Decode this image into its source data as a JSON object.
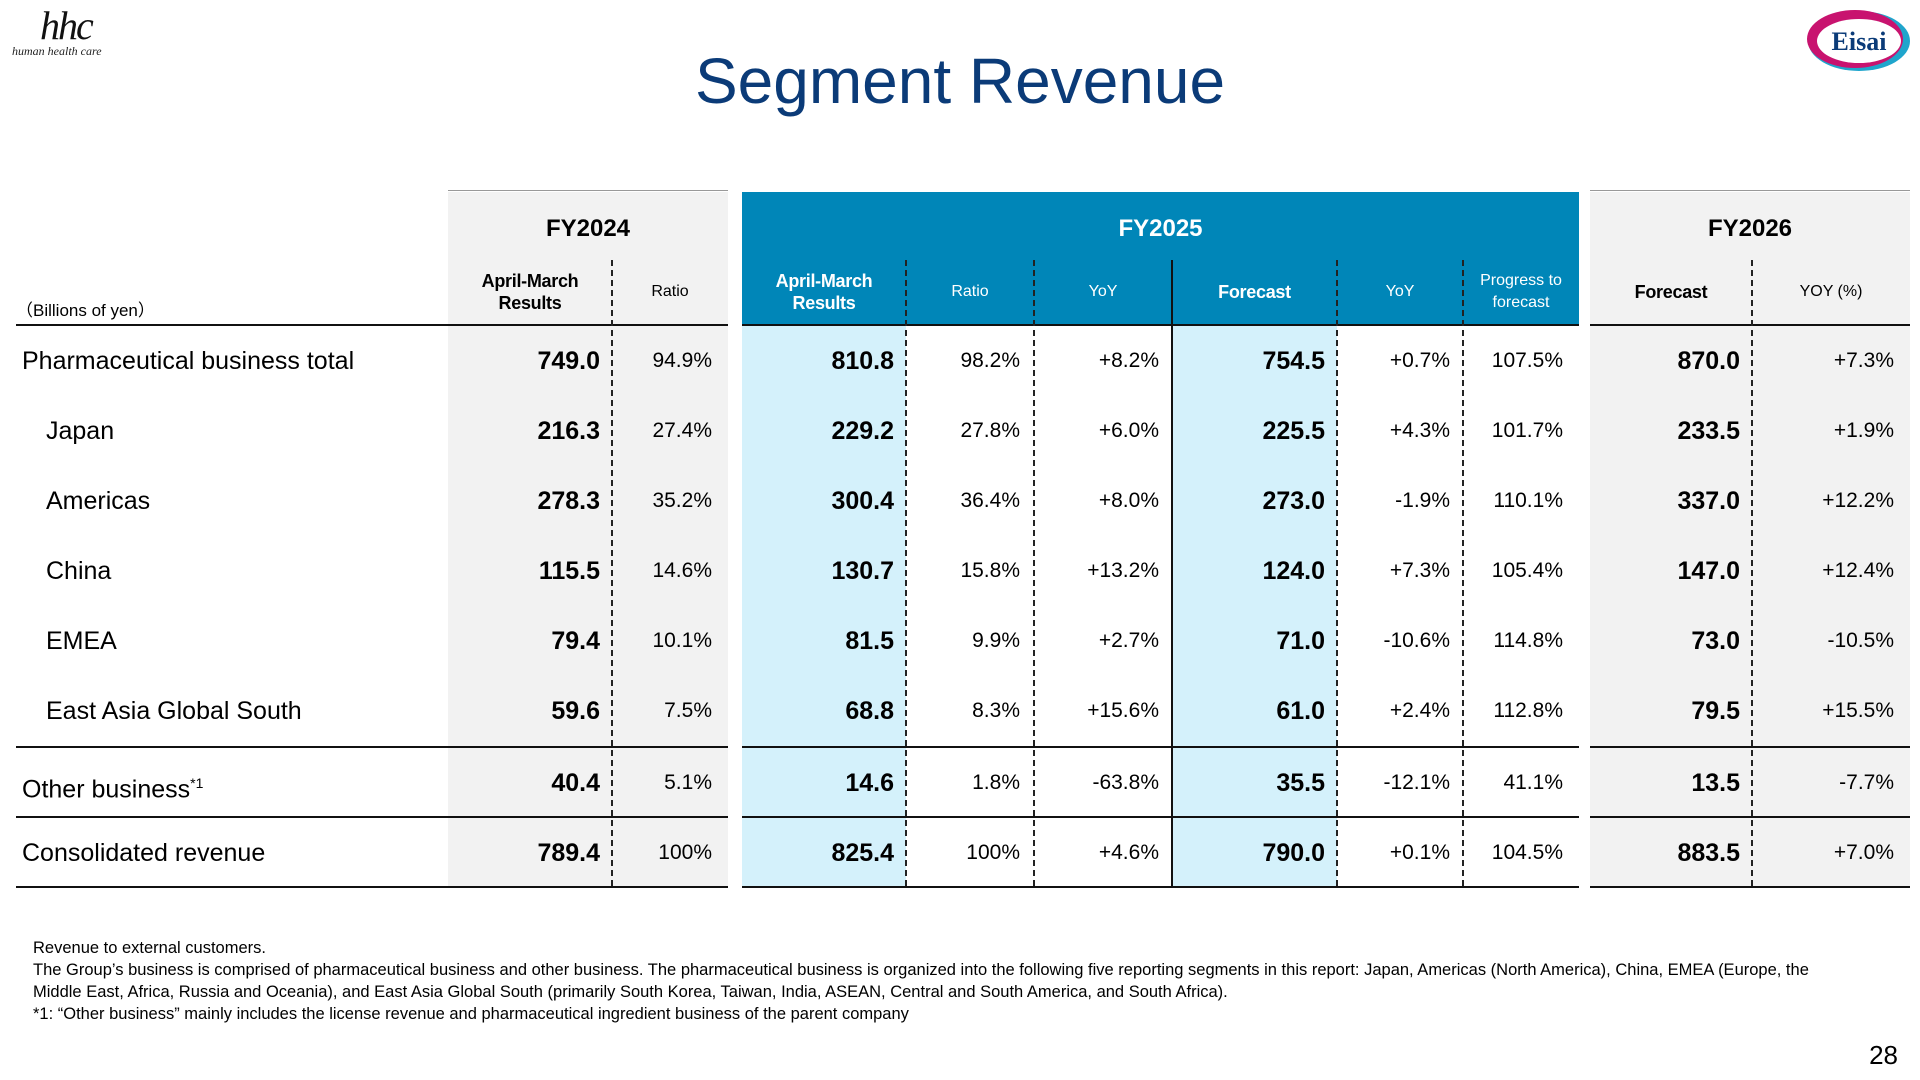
{
  "logo": {
    "mark": "hhc",
    "tagline": "human health care"
  },
  "brand": {
    "name": "Eisai",
    "colors": {
      "magenta": "#c8136f",
      "cyan": "#1fa5cc",
      "navy": "#0b3b78"
    }
  },
  "title": "Segment Revenue",
  "unit_label": "（Billions of yen）",
  "groups": {
    "fy2024": "FY2024",
    "fy2025": "FY2025",
    "fy2026": "FY2026"
  },
  "columns": {
    "fy24_results": "April-March Results",
    "fy24_ratio": "Ratio",
    "fy25_results": "April-March Results",
    "fy25_ratio": "Ratio",
    "fy25_yoy": "YoY",
    "fy25_forecast": "Forecast",
    "fy25_fc_yoy": "YoY",
    "fy25_progress": "Progress to forecast",
    "fy26_forecast": "Forecast",
    "fy26_yoy": "YOY (%)"
  },
  "rows": [
    {
      "label": "Pharmaceutical business total",
      "v": [
        "749.0",
        "94.9%",
        "810.8",
        "98.2%",
        "+8.2%",
        "754.5",
        "+0.7%",
        "107.5%",
        "870.0",
        "+7.3%"
      ]
    },
    {
      "label": "Japan",
      "v": [
        "216.3",
        "27.4%",
        "229.2",
        "27.8%",
        "+6.0%",
        "225.5",
        "+4.3%",
        "101.7%",
        "233.5",
        "+1.9%"
      ]
    },
    {
      "label": "Americas",
      "v": [
        "278.3",
        "35.2%",
        "300.4",
        "36.4%",
        "+8.0%",
        "273.0",
        "-1.9%",
        "110.1%",
        "337.0",
        "+12.2%"
      ]
    },
    {
      "label": "China",
      "v": [
        "115.5",
        "14.6%",
        "130.7",
        "15.8%",
        "+13.2%",
        "124.0",
        "+7.3%",
        "105.4%",
        "147.0",
        "+12.4%"
      ]
    },
    {
      "label": "EMEA",
      "v": [
        "79.4",
        "10.1%",
        "81.5",
        "9.9%",
        "+2.7%",
        "71.0",
        "-10.6%",
        "114.8%",
        "73.0",
        "-10.5%"
      ]
    },
    {
      "label": "East Asia Global South",
      "v": [
        "59.6",
        "7.5%",
        "68.8",
        "8.3%",
        "+15.6%",
        "61.0",
        "+2.4%",
        "112.8%",
        "79.5",
        "+15.5%"
      ]
    },
    {
      "label": "Other business",
      "sup": "*1",
      "v": [
        "40.4",
        "5.1%",
        "14.6",
        "1.8%",
        "-63.8%",
        "35.5",
        "-12.1%",
        "41.1%",
        "13.5",
        "-7.7%"
      ]
    },
    {
      "label": "Consolidated revenue",
      "v": [
        "789.4",
        "100%",
        "825.4",
        "100%",
        "+4.6%",
        "790.0",
        "+0.1%",
        "104.5%",
        "883.5",
        "+7.0%"
      ]
    }
  ],
  "notes": [
    "Revenue to external customers.",
    "The Group’s business is comprised of pharmaceutical business and other business. The pharmaceutical business is organized into the following five reporting segments in this report: Japan, Americas (North America), China, EMEA (Europe, the Middle East, Africa, Russia and Oceania), and East Asia Global South (primarily South Korea, Taiwan, India, ASEAN, Central and South America, and South Africa).",
    "*1: “Other business” mainly includes the license revenue and pharmaceutical ingredient business of the parent company"
  ],
  "page_number": "28"
}
